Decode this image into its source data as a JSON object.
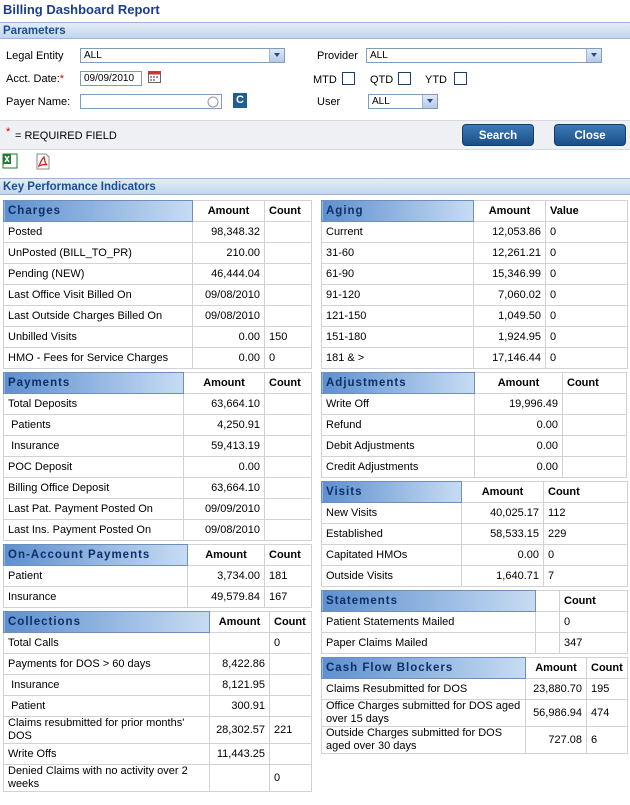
{
  "header": {
    "title": "Billing Dashboard Report"
  },
  "parameters": {
    "title": "Parameters",
    "legal_entity": {
      "label": "Legal Entity",
      "value": "ALL"
    },
    "provider": {
      "label": "Provider",
      "value": "ALL"
    },
    "acct_date": {
      "label": "Acct. Date:",
      "required": "*",
      "value": "09/09/2010"
    },
    "mtd": "MTD",
    "qtd": "QTD",
    "ytd": "YTD",
    "payer_name": {
      "label": "Payer Name:",
      "button": "C"
    },
    "user": {
      "label": "User",
      "value": "ALL"
    }
  },
  "required_note": {
    "mark": "*",
    "text": "= REQUIRED FIELD"
  },
  "buttons": {
    "search": "Search",
    "close": "Close"
  },
  "kpi": {
    "title": "Key Performance Indicators",
    "left": [
      {
        "title": "Charges",
        "headers": {
          "amount": "Amount",
          "count": "Count"
        },
        "rows": [
          {
            "label": "Posted",
            "amount": "98,348.32"
          },
          {
            "label": "UnPosted (BILL_TO_PR)",
            "amount": "210.00"
          },
          {
            "label": "Pending (NEW)",
            "amount": "46,444.04"
          },
          {
            "label": "Last Office Visit Billed On",
            "amount": "09/08/2010"
          },
          {
            "label": "Last Outside Charges Billed On",
            "amount": "09/08/2010"
          },
          {
            "label": "Unbilled Visits",
            "amount": "0.00",
            "count": 150
          },
          {
            "label": "HMO - Fees for Service Charges",
            "amount": "0.00",
            "count": 0
          }
        ]
      },
      {
        "title": "Payments",
        "headers": {
          "amount": "Amount",
          "count": "Count"
        },
        "rows": [
          {
            "label": "Total Deposits",
            "amount": "63,664.10"
          },
          {
            "label": " Patients",
            "amount": "4,250.91"
          },
          {
            "label": " Insurance",
            "amount": "59,413.19"
          },
          {
            "label": "POC Deposit",
            "amount": "0.00"
          },
          {
            "label": "Billing Office Deposit",
            "amount": "63,664.10"
          },
          {
            "label": "Last Pat. Payment Posted On",
            "amount": "09/09/2010"
          },
          {
            "label": "Last Ins. Payment Posted On",
            "amount": "09/08/2010"
          }
        ]
      },
      {
        "title": "On-Account Payments",
        "headers": {
          "amount": "Amount",
          "count": "Count"
        },
        "rows": [
          {
            "label": "Patient",
            "amount": "3,734.00",
            "count": 181
          },
          {
            "label": "Insurance",
            "amount": "49,579.84",
            "count": 167
          }
        ]
      },
      {
        "title": "Collections",
        "headers": {
          "amount": "Amount",
          "count": "Count"
        },
        "rows": [
          {
            "label": "Total Calls",
            "count": 0
          },
          {
            "label": "Payments for DOS > 60 days",
            "amount": "8,422.86"
          },
          {
            "label": " Insurance",
            "amount": "8,121.95"
          },
          {
            "label": " Patient",
            "amount": "300.91"
          },
          {
            "label": "Claims resubmitted for prior months' DOS",
            "amount": "28,302.57",
            "count": 221
          },
          {
            "label": "Write Offs",
            "amount": "11,443.25"
          },
          {
            "label": "Denied Claims with no activity over 2 weeks",
            "count": 0
          }
        ]
      }
    ],
    "right": [
      {
        "title": "Aging",
        "headers": {
          "amount": "Amount",
          "count": "Value"
        },
        "rows": [
          {
            "label": "Current",
            "amount": "12,053.86",
            "count": 0
          },
          {
            "label": "31-60",
            "amount": "12,261.21",
            "count": 0
          },
          {
            "label": "61-90",
            "amount": "15,346.99",
            "count": 0
          },
          {
            "label": "91-120",
            "amount": "7,060.02",
            "count": 0
          },
          {
            "label": "121-150",
            "amount": "1,049.50",
            "count": 0
          },
          {
            "label": "151-180",
            "amount": "1,924.95",
            "count": 0
          },
          {
            "label": "181 & >",
            "amount": "17,146.44",
            "count": 0
          }
        ]
      },
      {
        "title": "Adjustments",
        "headers": {
          "amount": "Amount",
          "count": "Count"
        },
        "rows": [
          {
            "label": "Write Off",
            "amount": "19,996.49"
          },
          {
            "label": "Refund",
            "amount": "0.00"
          },
          {
            "label": "Debit Adjustments",
            "amount": "0.00"
          },
          {
            "label": "Credit Adjustments",
            "amount": "0.00"
          }
        ]
      },
      {
        "title": "Visits",
        "headers": {
          "amount": "Amount",
          "count": "Count"
        },
        "rows": [
          {
            "label": "New Visits",
            "amount": "40,025.17",
            "count": 112
          },
          {
            "label": "Established",
            "amount": "58,533.15",
            "count": 229
          },
          {
            "label": "Capitated HMOs",
            "amount": "0.00",
            "count": 0
          },
          {
            "label": "Outside Visits",
            "amount": "1,640.71",
            "count": 7
          }
        ]
      },
      {
        "title": "Statements",
        "headers": {
          "count": "Count"
        },
        "rows": [
          {
            "label": "Patient Statements Mailed",
            "count": 0
          },
          {
            "label": "Paper Claims Mailed",
            "count": 347
          }
        ]
      },
      {
        "title": "Cash Flow Blockers",
        "headers": {
          "amount": "Amount",
          "count": "Count"
        },
        "rows": [
          {
            "label": "Claims Resubmitted for DOS",
            "amount": "23,880.70",
            "count": 195
          },
          {
            "label": "Office Charges submitted for DOS aged over 15 days",
            "amount": "56,986.94",
            "count": 474
          },
          {
            "label": "Outside Charges submitted for DOS aged over 30 days",
            "amount": "727.08",
            "count": 6
          }
        ]
      }
    ]
  }
}
